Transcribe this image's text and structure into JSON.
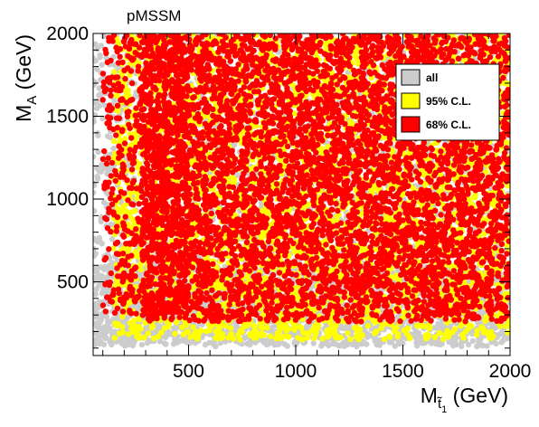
{
  "chart_data": {
    "type": "scatter",
    "title": "pMSSM",
    "xlabel": {
      "main": "M",
      "sub": "t̃",
      "sub2": "1",
      "unit": " (GeV)"
    },
    "ylabel": {
      "main": "M",
      "sub": "A",
      "unit": " (GeV)"
    },
    "xlim": [
      55,
      2000
    ],
    "ylim": [
      55,
      2000
    ],
    "x_ticks": [
      500,
      1000,
      1500,
      2000
    ],
    "x_tick_labels": [
      "500",
      "1000",
      "1500",
      "2000"
    ],
    "y_ticks": [
      500,
      1000,
      1500,
      2000
    ],
    "y_tick_labels": [
      "500",
      "1000",
      "1500",
      "2000"
    ],
    "grid": false,
    "legend_position": "top-right",
    "series": [
      {
        "name": "all",
        "color": "#cccccc",
        "regions": [
          {
            "x": [
              55,
              2000
            ],
            "y": [
              110,
              2000
            ],
            "density": 0.35
          },
          {
            "x": [
              55,
              2000
            ],
            "y": [
              120,
              600
            ],
            "density": 1.0
          }
        ]
      },
      {
        "name": "95% C.L.",
        "color": "#ffff00",
        "regions": [
          {
            "x": [
              150,
              2000
            ],
            "y": [
              150,
              2000
            ],
            "density": 0.6
          }
        ]
      },
      {
        "name": "68% C.L.",
        "color": "#ff0000",
        "regions": [
          {
            "x": [
              280,
              2000
            ],
            "y": [
              260,
              2000
            ],
            "density": 1.0
          },
          {
            "x": [
              100,
              500
            ],
            "y": [
              300,
              2000
            ],
            "density": 0.5
          }
        ]
      }
    ]
  }
}
